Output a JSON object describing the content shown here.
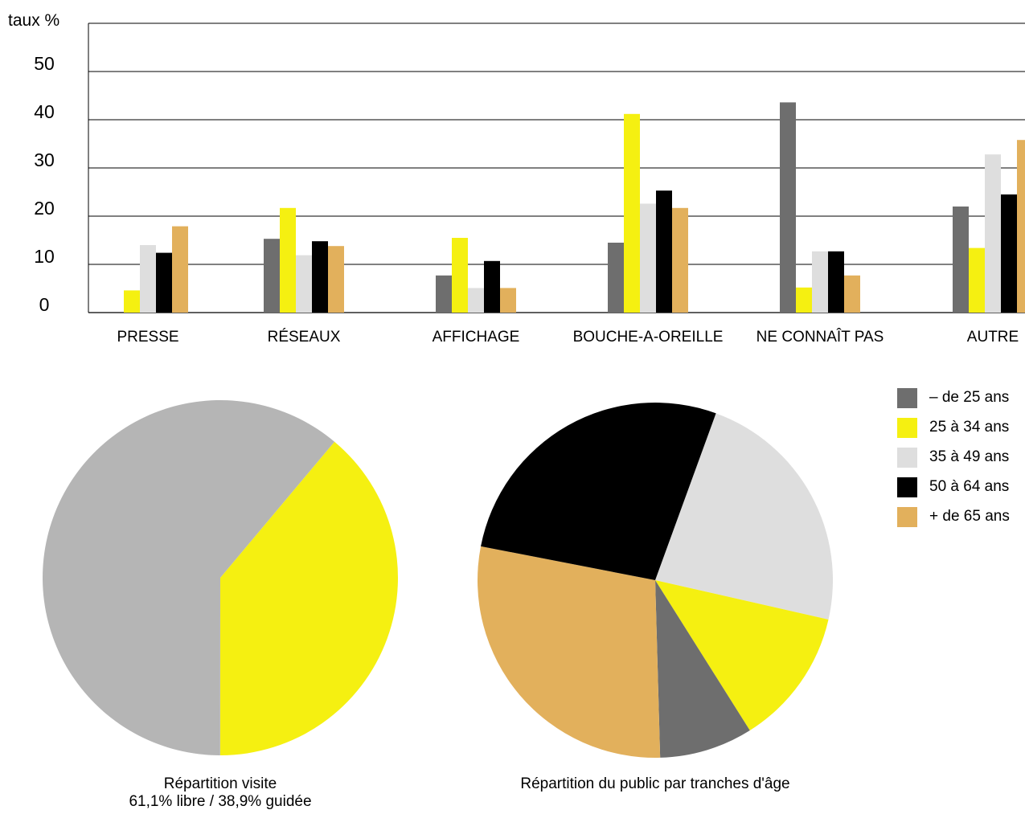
{
  "chart_data": [
    {
      "type": "bar",
      "ylabel": "taux %",
      "ylim": [
        0,
        60
      ],
      "yticks": [
        0,
        10,
        20,
        30,
        40,
        50
      ],
      "grid": true,
      "categories": [
        "PRESSE",
        "RÉSEAUX",
        "AFFICHAGE",
        "BOUCHE-A-OREILLE",
        "NE CONNAÎT PAS",
        "AUTRE"
      ],
      "series": [
        {
          "name": "– de 25 ans",
          "color": "#6e6e6e",
          "values": [
            0,
            15.3,
            7.7,
            14.5,
            43.6,
            22
          ]
        },
        {
          "name": "25 à 34 ans",
          "color": "#f5f011",
          "values": [
            4.6,
            21.7,
            15.5,
            41.2,
            5.2,
            13.4
          ]
        },
        {
          "name": "35 à 49 ans",
          "color": "#dedede",
          "values": [
            14,
            11.9,
            5.1,
            22.6,
            12.7,
            32.8
          ]
        },
        {
          "name": "50 à 64 ans",
          "color": "#000000",
          "values": [
            12.4,
            14.8,
            10.7,
            25.3,
            12.7,
            24.5
          ]
        },
        {
          "name": "+ de 65 ans",
          "color": "#e2b05c",
          "values": [
            17.9,
            13.8,
            5.1,
            21.7,
            7.7,
            35.8
          ]
        }
      ]
    },
    {
      "type": "pie",
      "title": "Répartition visite",
      "subtitle": "61,1% libre / 38,9% guidée",
      "slices": [
        {
          "value": 38.9,
          "color": "#f5f011"
        },
        {
          "value": 61.1,
          "color": "#b5b5b5"
        }
      ]
    },
    {
      "type": "pie",
      "title": "Répartition du public par tranches d'âge",
      "slices": [
        {
          "name": "35 à 49 ans",
          "value": 23,
          "color": "#dedede"
        },
        {
          "name": "25 à 34 ans",
          "value": 12.5,
          "color": "#f5f011"
        },
        {
          "name": "– de 25 ans",
          "value": 8.5,
          "color": "#6e6e6e"
        },
        {
          "name": "+ de 65 ans",
          "value": 28.5,
          "color": "#e2b05c"
        },
        {
          "name": "50 à 64 ans",
          "value": 27.5,
          "color": "#000000"
        }
      ]
    }
  ],
  "legend": [
    {
      "label": "– de 25 ans",
      "color": "#6e6e6e"
    },
    {
      "label": "25 à 34 ans",
      "color": "#f5f011"
    },
    {
      "label": "35 à 49 ans",
      "color": "#dedede"
    },
    {
      "label": "50 à 64 ans",
      "color": "#000000"
    },
    {
      "label": "+ de 65 ans",
      "color": "#e2b05c"
    }
  ]
}
